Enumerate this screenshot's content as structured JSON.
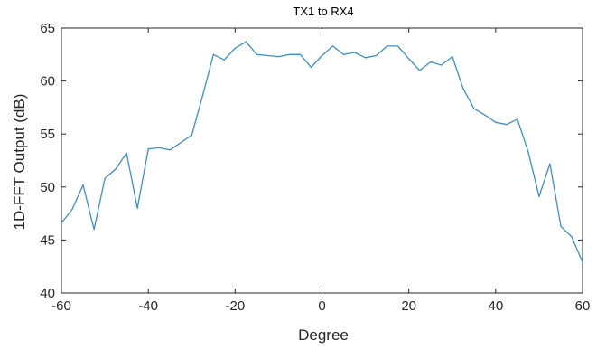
{
  "chart_data": {
    "type": "line",
    "title": "TX1 to RX4",
    "xlabel": "Degree",
    "ylabel": "1D-FFT Output (dB)",
    "xlim": [
      -60,
      60
    ],
    "ylim": [
      40,
      65
    ],
    "xticks": [
      -60,
      -40,
      -20,
      0,
      20,
      40,
      60
    ],
    "yticks": [
      40,
      45,
      50,
      55,
      60,
      65
    ],
    "xtick_labels": [
      "-60",
      "-40",
      "-20",
      "0",
      "20",
      "40",
      "60"
    ],
    "ytick_labels": [
      "40",
      "45",
      "50",
      "55",
      "60",
      "65"
    ],
    "grid": false,
    "line_color": "#3b8fc8",
    "x": [
      -60,
      -57.5,
      -55,
      -52.5,
      -50,
      -47.5,
      -45,
      -42.5,
      -40,
      -37.5,
      -35,
      -32.5,
      -30,
      -27.5,
      -25,
      -22.5,
      -20,
      -17.5,
      -15,
      -12.5,
      -10,
      -7.5,
      -5,
      -2.5,
      0,
      2.5,
      5,
      7.5,
      10,
      12.5,
      15,
      17.5,
      20,
      22.5,
      25,
      27.5,
      30,
      32.5,
      35,
      37.5,
      40,
      42.5,
      45,
      47.5,
      50,
      52.5,
      55,
      57.5,
      60
    ],
    "y": [
      46.6,
      47.9,
      50.2,
      46.0,
      50.8,
      51.7,
      53.2,
      48.0,
      53.6,
      53.7,
      53.5,
      54.2,
      54.9,
      58.6,
      62.5,
      62.0,
      63.1,
      63.7,
      62.5,
      62.4,
      62.3,
      62.5,
      62.5,
      61.3,
      62.4,
      63.3,
      62.5,
      62.7,
      62.2,
      62.4,
      63.3,
      63.3,
      62.1,
      61.0,
      61.8,
      61.5,
      62.3,
      59.3,
      57.4,
      56.8,
      56.1,
      55.9,
      56.4,
      53.3,
      49.1,
      52.2,
      46.3,
      45.3,
      42.9
    ]
  }
}
